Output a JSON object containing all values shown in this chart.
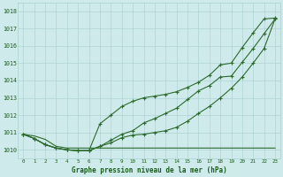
{
  "x": [
    0,
    1,
    2,
    3,
    4,
    5,
    6,
    7,
    8,
    9,
    10,
    11,
    12,
    13,
    14,
    15,
    16,
    17,
    18,
    19,
    20,
    21,
    22,
    23
  ],
  "line1": [
    1010.9,
    1010.8,
    1010.6,
    1010.2,
    1010.1,
    1010.1,
    1010.1,
    1010.1,
    1010.1,
    1010.1,
    1010.1,
    1010.1,
    1010.1,
    1010.1,
    1010.1,
    1010.1,
    1010.1,
    1010.1,
    1010.1,
    1010.1,
    1010.1,
    1010.1,
    1010.1,
    1010.1
  ],
  "line2": [
    1010.9,
    1010.65,
    1010.3,
    1010.1,
    1010.0,
    1009.95,
    1009.95,
    1010.2,
    1010.4,
    1010.7,
    1010.85,
    1010.9,
    1011.0,
    1011.1,
    1011.3,
    1011.65,
    1012.1,
    1012.5,
    1013.0,
    1013.55,
    1014.2,
    1015.0,
    1015.85,
    1017.55
  ],
  "line3": [
    1010.9,
    1010.65,
    1010.3,
    1010.1,
    1010.0,
    1009.95,
    1009.95,
    1010.2,
    1010.55,
    1010.9,
    1011.1,
    1011.55,
    1011.8,
    1012.1,
    1012.4,
    1012.9,
    1013.4,
    1013.7,
    1014.2,
    1014.25,
    1015.05,
    1015.85,
    1016.7,
    1017.55
  ],
  "line4": [
    1010.9,
    1010.65,
    1010.3,
    1010.1,
    1010.0,
    1009.95,
    1009.95,
    1011.5,
    1012.0,
    1012.5,
    1012.8,
    1013.0,
    1013.1,
    1013.2,
    1013.35,
    1013.6,
    1013.9,
    1014.3,
    1014.9,
    1015.0,
    1015.9,
    1016.75,
    1017.55,
    1017.6
  ],
  "ylim": [
    1009.5,
    1018.5
  ],
  "yticks": [
    1010,
    1011,
    1012,
    1013,
    1014,
    1015,
    1016,
    1017,
    1018
  ],
  "xlabel": "Graphe pression niveau de la mer (hPa)",
  "line_color": "#2d6a2d",
  "marker_color": "#2d6a2d",
  "bg_color": "#ceeaea",
  "grid_color": "#aacfcf",
  "tick_label_color": "#1a5c1a",
  "xlabel_color": "#1a5c1a"
}
